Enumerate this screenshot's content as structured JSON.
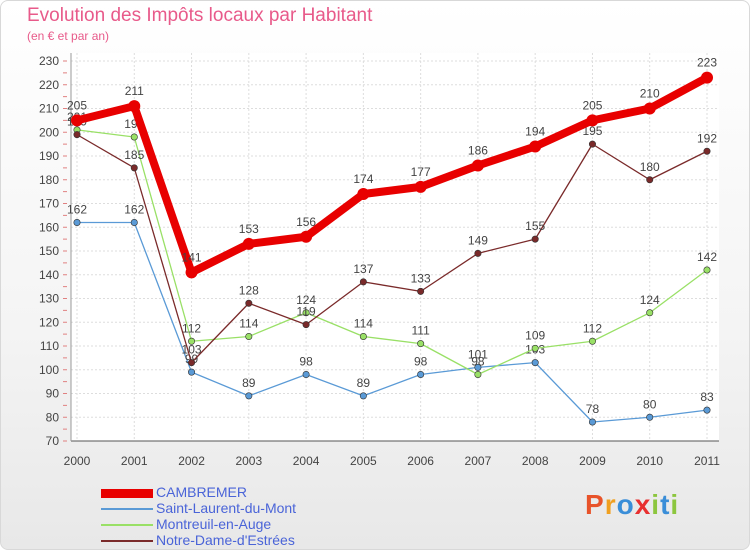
{
  "chart_data": {
    "type": "line",
    "title": "Evolution des Impôts locaux par Habitant",
    "subtitle": "(en € et par an)",
    "xlabel": "",
    "ylabel": "",
    "ylim": [
      70,
      230
    ],
    "ytick_step": 10,
    "categories": [
      "2000",
      "2001",
      "2002",
      "2003",
      "2004",
      "2005",
      "2006",
      "2007",
      "2008",
      "2009",
      "2010",
      "2011"
    ],
    "series": [
      {
        "name": "Saint-Laurent-du-Mont",
        "color": "#5a9ad6",
        "values": [
          162,
          162,
          99,
          89,
          98,
          89,
          98,
          101,
          103,
          78,
          80,
          83
        ]
      },
      {
        "name": "Montreuil-en-Auge",
        "color": "#99e066",
        "values": [
          201,
          198,
          112,
          114,
          124,
          114,
          111,
          98,
          109,
          112,
          124,
          142
        ]
      },
      {
        "name": "Notre-Dame-d'Estrées",
        "color": "#7a2a2a",
        "values": [
          199,
          185,
          103,
          128,
          119,
          137,
          133,
          149,
          155,
          195,
          180,
          192
        ]
      },
      {
        "name": "CAMBREMER",
        "color": "#e80000",
        "values": [
          205,
          211,
          141,
          153,
          156,
          174,
          177,
          186,
          194,
          205,
          210,
          223
        ]
      }
    ],
    "legend": [
      {
        "name": "CAMBREMER",
        "color": "#e80000",
        "weight": "thick"
      },
      {
        "name": "Saint-Laurent-du-Mont",
        "color": "#5a9ad6",
        "weight": "thin"
      },
      {
        "name": "Montreuil-en-Auge",
        "color": "#99e066",
        "weight": "thin"
      },
      {
        "name": "Notre-Dame-d'Estrées",
        "color": "#7a2a2a",
        "weight": "thin"
      }
    ],
    "legend_position": "bottom-left"
  },
  "branding": {
    "logo_text": "Proxiti",
    "letters": [
      {
        "ch": "P",
        "color": "#e8532a"
      },
      {
        "ch": "r",
        "color": "#f0a020"
      },
      {
        "ch": "o",
        "color": "#3a8ed8"
      },
      {
        "ch": "x",
        "color": "#e83030"
      },
      {
        "ch": "i",
        "color": "#8cc63e"
      },
      {
        "ch": "t",
        "color": "#3a8ed8"
      },
      {
        "ch": "i",
        "color": "#8cc63e"
      }
    ]
  }
}
